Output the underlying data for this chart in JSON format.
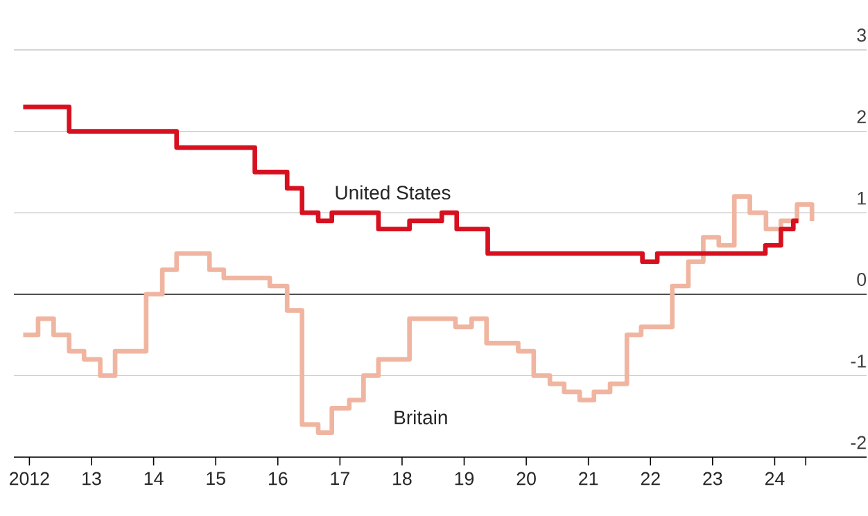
{
  "chart_data": {
    "type": "step",
    "series": [
      {
        "name": "United States",
        "color": "#d7101f",
        "x": [
          2011.9,
          2012.64,
          2014.37,
          2015.63,
          2016.15,
          2016.39,
          2016.65,
          2016.87,
          2017.62,
          2018.12,
          2018.64,
          2018.88,
          2019.38,
          2021.87,
          2022.11,
          2023.85,
          2024.1,
          2024.3,
          2024.38
        ],
        "values": [
          2.3,
          2.0,
          1.8,
          1.5,
          1.3,
          1.0,
          0.9,
          1.0,
          0.8,
          0.9,
          1.0,
          0.8,
          0.5,
          0.4,
          0.5,
          0.6,
          0.8,
          0.9,
          0.9
        ]
      },
      {
        "name": "Britain",
        "color": "#f0b5a0",
        "x": [
          2011.9,
          2012.14,
          2012.39,
          2012.64,
          2012.88,
          2013.14,
          2013.38,
          2013.88,
          2014.14,
          2014.37,
          2014.9,
          2015.13,
          2015.87,
          2016.15,
          2016.39,
          2016.65,
          2016.87,
          2017.15,
          2017.38,
          2017.62,
          2018.12,
          2018.86,
          2019.12,
          2019.36,
          2019.87,
          2020.12,
          2020.38,
          2020.61,
          2020.86,
          2021.09,
          2021.35,
          2021.62,
          2021.85,
          2022.35,
          2022.61,
          2022.85,
          2023.1,
          2023.35,
          2023.6,
          2023.86,
          2024.1,
          2024.36,
          2024.6
        ],
        "values": [
          -0.5,
          -0.3,
          -0.5,
          -0.7,
          -0.8,
          -1.0,
          -0.7,
          0.0,
          0.3,
          0.5,
          0.3,
          0.2,
          0.1,
          -0.2,
          -1.6,
          -1.7,
          -1.4,
          -1.3,
          -1.0,
          -0.8,
          -0.3,
          -0.4,
          -0.3,
          -0.6,
          -0.7,
          -1.0,
          -1.1,
          -1.2,
          -1.3,
          -1.2,
          -1.1,
          -0.5,
          -0.4,
          0.1,
          0.4,
          0.7,
          0.6,
          1.2,
          1.0,
          0.8,
          0.9,
          1.1,
          0.9
        ]
      }
    ],
    "xlim": [
      2011.75,
      2025.48
    ],
    "ylim": [
      -2,
      3
    ],
    "xticks": [
      {
        "value": 2012,
        "label": "2012"
      },
      {
        "value": 2013,
        "label": "13"
      },
      {
        "value": 2014,
        "label": "14"
      },
      {
        "value": 2015,
        "label": "15"
      },
      {
        "value": 2016,
        "label": "16"
      },
      {
        "value": 2017,
        "label": "17"
      },
      {
        "value": 2018,
        "label": "18"
      },
      {
        "value": 2019,
        "label": "19"
      },
      {
        "value": 2020,
        "label": "20"
      },
      {
        "value": 2021,
        "label": "21"
      },
      {
        "value": 2022,
        "label": "22"
      },
      {
        "value": 2023,
        "label": "23"
      },
      {
        "value": 2024,
        "label": "24"
      },
      {
        "value": 2024.5,
        "label": null
      }
    ],
    "yticks": [
      -2,
      -1,
      0,
      1,
      2,
      3
    ],
    "grid": "y",
    "ref_lines": [
      {
        "axis": "y",
        "value": 0,
        "color": "#000000"
      }
    ]
  }
}
